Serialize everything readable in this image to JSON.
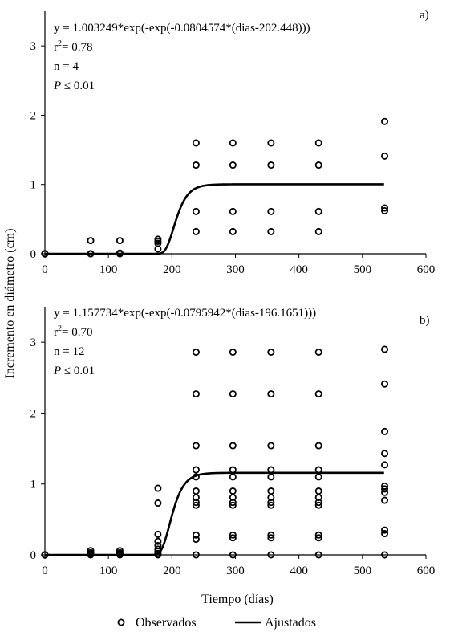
{
  "figure": {
    "ylabel": "Incremento  en diámetro  (cm)",
    "xlabel": "Tiempo  (días)",
    "legend": {
      "observed": "Observados",
      "fitted": "Ajustados",
      "placement": "bottom-center"
    },
    "colors": {
      "ink": "#000000",
      "background": "#ffffff"
    }
  },
  "chart_data": [
    {
      "type": "scatter",
      "panel_label": "a)",
      "equation": "y = 1.003249*exp(-exp(-0.0804574*(dias-202.448)))",
      "r2_prefix": "r",
      "r2_sup": "2",
      "r2_value": "= 0.78",
      "n_text": "n = 4",
      "p_italic": "P",
      "p_rest": " ≤ 0.01",
      "xlim": [
        0,
        600
      ],
      "ylim": [
        0,
        3.5
      ],
      "xticks": [
        0,
        100,
        200,
        300,
        400,
        500,
        600
      ],
      "yticks": [
        0,
        1,
        2,
        3
      ],
      "grid": false,
      "model": {
        "a": 1.003249,
        "b": 0.0804574,
        "c": 202.448,
        "x_range": [
          0,
          535
        ]
      },
      "series": [
        {
          "name": "Observados",
          "x": [
            0,
            0,
            0,
            0,
            72,
            72,
            72,
            72,
            118,
            118,
            118,
            118,
            178,
            178,
            178,
            178,
            238,
            238,
            238,
            238,
            296,
            296,
            296,
            296,
            356,
            356,
            356,
            356,
            431,
            431,
            431,
            431,
            535,
            535,
            535,
            535
          ],
          "y": [
            0,
            0,
            0,
            0,
            0.19,
            0.0,
            0.0,
            0.0,
            0.19,
            0.01,
            0.0,
            0.0,
            0.21,
            0.18,
            0.15,
            0.07,
            1.6,
            1.28,
            0.61,
            0.32,
            1.6,
            1.28,
            0.61,
            0.32,
            1.6,
            1.28,
            0.61,
            0.32,
            1.6,
            1.28,
            0.61,
            0.32,
            1.91,
            1.41,
            0.66,
            0.62
          ]
        },
        {
          "name": "Ajustados",
          "curve": "gompertz"
        }
      ]
    },
    {
      "type": "scatter",
      "panel_label": "b)",
      "equation": "y = 1.157734*exp(-exp(-0.0795942*(dias-196.1651)))",
      "r2_prefix": "r",
      "r2_sup": "2",
      "r2_value": "= 0.70",
      "n_text": "n = 12",
      "p_italic": "P",
      "p_rest": " ≤ 0.01",
      "xlim": [
        0,
        600
      ],
      "ylim": [
        0,
        3.5
      ],
      "xticks": [
        0,
        100,
        200,
        300,
        400,
        500,
        600
      ],
      "yticks": [
        0,
        1,
        2,
        3
      ],
      "grid": false,
      "model": {
        "a": 1.157734,
        "b": 0.0795942,
        "c": 196.1651,
        "x_range": [
          0,
          535
        ]
      },
      "series": [
        {
          "name": "Observados",
          "x": [
            0,
            0,
            0,
            72,
            72,
            72,
            72,
            118,
            118,
            118,
            118,
            178,
            178,
            178,
            178,
            178,
            178,
            178,
            178,
            178,
            238,
            238,
            238,
            238,
            238,
            238,
            238,
            238,
            238,
            238,
            238,
            238,
            296,
            296,
            296,
            296,
            296,
            296,
            296,
            296,
            296,
            296,
            296,
            296,
            356,
            356,
            356,
            356,
            356,
            356,
            356,
            356,
            356,
            356,
            356,
            356,
            431,
            431,
            431,
            431,
            431,
            431,
            431,
            431,
            431,
            431,
            431,
            431,
            535,
            535,
            535,
            535,
            535,
            535,
            535,
            535,
            535,
            535,
            535,
            535
          ],
          "y": [
            0,
            0,
            0,
            0.06,
            0.03,
            0.01,
            0.0,
            0.06,
            0.03,
            0.01,
            0.0,
            0.94,
            0.73,
            0.29,
            0.19,
            0.13,
            0.08,
            0.05,
            0.02,
            0.0,
            2.86,
            2.27,
            1.54,
            1.2,
            1.1,
            0.9,
            0.81,
            0.74,
            0.7,
            0.28,
            0.22,
            0.0,
            2.86,
            2.27,
            1.54,
            1.2,
            1.1,
            0.9,
            0.81,
            0.74,
            0.7,
            0.28,
            0.24,
            0.0,
            2.86,
            2.27,
            1.54,
            1.2,
            1.1,
            0.9,
            0.81,
            0.74,
            0.7,
            0.28,
            0.24,
            0.0,
            2.86,
            2.27,
            1.54,
            1.2,
            1.1,
            0.9,
            0.81,
            0.74,
            0.7,
            0.28,
            0.24,
            0.0,
            2.9,
            2.41,
            1.74,
            1.43,
            1.27,
            0.97,
            0.93,
            0.88,
            0.77,
            0.35,
            0.3,
            0.0
          ]
        },
        {
          "name": "Ajustados",
          "curve": "gompertz"
        }
      ]
    }
  ]
}
